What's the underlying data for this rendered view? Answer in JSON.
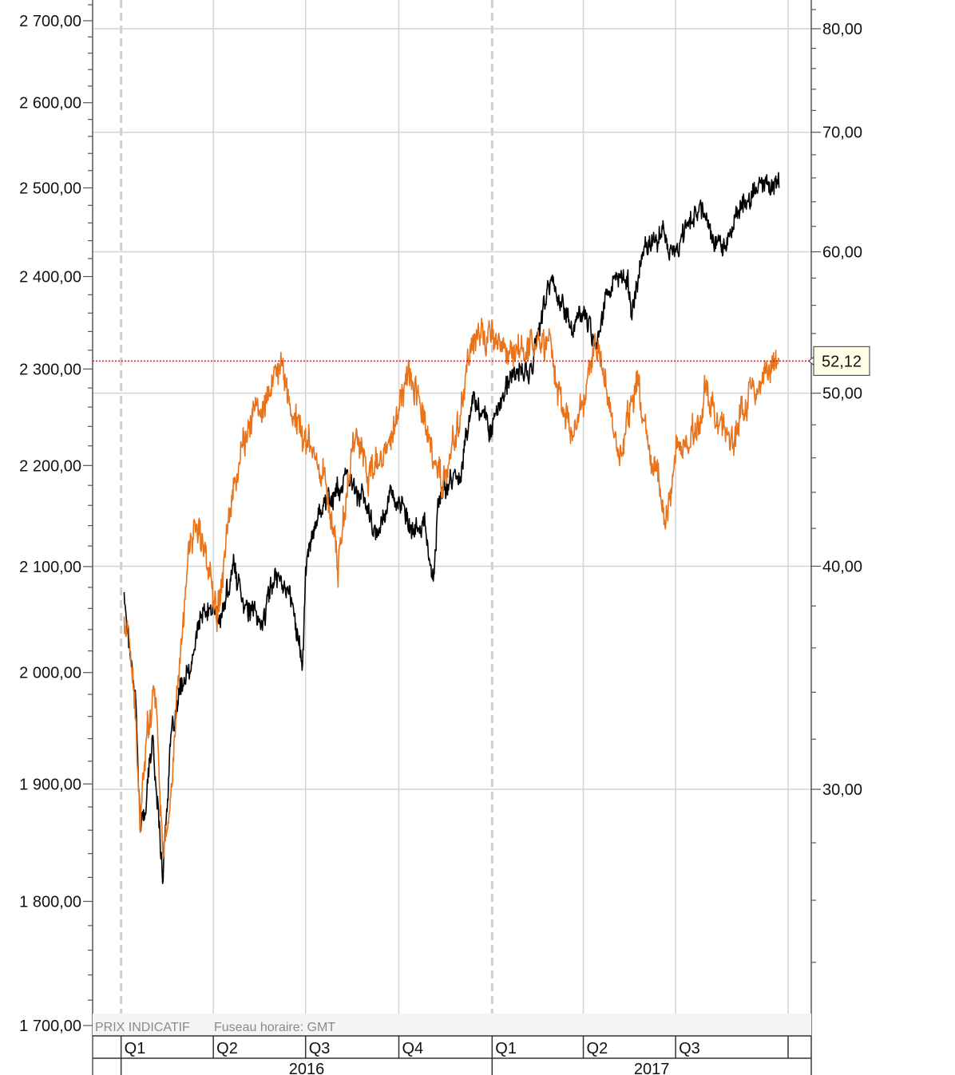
{
  "footer": {
    "price_note": "PRIX INDICATIF",
    "timezone_note": "Fuseau horaire: GMT"
  },
  "colors": {
    "index_series": "#000000",
    "oil_series": "#e8731a",
    "reference_line": "#b22222",
    "grid": "#d4d4d4",
    "callout_bg": "#ffffe8"
  },
  "chart_data": {
    "type": "line",
    "title": "",
    "grid": true,
    "left_axis": {
      "scale": "log",
      "range": [
        1700,
        2720
      ],
      "ticks": [
        {
          "value": 1700,
          "label": "1 700,00"
        },
        {
          "value": 1800,
          "label": "1 800,00"
        },
        {
          "value": 1900,
          "label": "1 900,00"
        },
        {
          "value": 2000,
          "label": "2 000,00"
        },
        {
          "value": 2100,
          "label": "2 100,00"
        },
        {
          "value": 2200,
          "label": "2 200,00"
        },
        {
          "value": 2300,
          "label": "2 300,00"
        },
        {
          "value": 2400,
          "label": "2 400,00"
        },
        {
          "value": 2500,
          "label": "2 500,00"
        },
        {
          "value": 2600,
          "label": "2 600,00"
        },
        {
          "value": 2700,
          "label": "2 700,00"
        }
      ]
    },
    "right_axis": {
      "scale": "log",
      "ticks": [
        {
          "value": 30,
          "label": "30,00"
        },
        {
          "value": 40,
          "label": "40,00"
        },
        {
          "value": 50,
          "label": "50,00"
        },
        {
          "value": 60,
          "label": "60,00"
        },
        {
          "value": 70,
          "label": "70,00"
        },
        {
          "value": 80,
          "label": "80,00"
        }
      ]
    },
    "x_axis": {
      "range": [
        "2015-12-11",
        "2017-10-20"
      ],
      "quarters": [
        {
          "label": "Q1",
          "date": "2016-01-01"
        },
        {
          "label": "Q2",
          "date": "2016-04-01"
        },
        {
          "label": "Q3",
          "date": "2016-07-01"
        },
        {
          "label": "Q4",
          "date": "2016-10-01"
        },
        {
          "label": "Q1",
          "date": "2017-01-01"
        },
        {
          "label": "Q2",
          "date": "2017-04-01"
        },
        {
          "label": "Q3",
          "date": "2017-07-01"
        }
      ],
      "years": [
        {
          "label": "2016",
          "start": "2016-01-01",
          "end": "2017-01-01"
        },
        {
          "label": "2017",
          "start": "2017-01-01",
          "end": "2017-12-31"
        }
      ]
    },
    "current_value": {
      "axis": "right",
      "value": 52.12,
      "label": "52,12"
    },
    "series": [
      {
        "axis": "left",
        "color": "#000000",
        "points": [
          [
            "2016-01-04",
            2074
          ],
          [
            "2016-01-08",
            2035
          ],
          [
            "2016-01-15",
            1985
          ],
          [
            "2016-01-20",
            1860
          ],
          [
            "2016-01-25",
            1880
          ],
          [
            "2016-02-01",
            1940
          ],
          [
            "2016-02-11",
            1825
          ],
          [
            "2016-02-19",
            1935
          ],
          [
            "2016-03-01",
            1990
          ],
          [
            "2016-03-10",
            2000
          ],
          [
            "2016-03-18",
            2050
          ],
          [
            "2016-04-01",
            2060
          ],
          [
            "2016-04-08",
            2045
          ],
          [
            "2016-04-20",
            2100
          ],
          [
            "2016-05-05",
            2060
          ],
          [
            "2016-05-19",
            2045
          ],
          [
            "2016-06-01",
            2095
          ],
          [
            "2016-06-10",
            2085
          ],
          [
            "2016-06-16",
            2070
          ],
          [
            "2016-06-24",
            2035
          ],
          [
            "2016-06-28",
            2000
          ],
          [
            "2016-07-01",
            2100
          ],
          [
            "2016-07-08",
            2130
          ],
          [
            "2016-07-15",
            2160
          ],
          [
            "2016-07-29",
            2170
          ],
          [
            "2016-08-10",
            2185
          ],
          [
            "2016-08-26",
            2170
          ],
          [
            "2016-09-09",
            2125
          ],
          [
            "2016-09-22",
            2175
          ],
          [
            "2016-10-03",
            2160
          ],
          [
            "2016-10-14",
            2130
          ],
          [
            "2016-10-25",
            2145
          ],
          [
            "2016-11-04",
            2085
          ],
          [
            "2016-11-09",
            2165
          ],
          [
            "2016-11-18",
            2180
          ],
          [
            "2016-12-01",
            2195
          ],
          [
            "2016-12-13",
            2270
          ],
          [
            "2016-12-30",
            2240
          ],
          [
            "2017-01-13",
            2275
          ],
          [
            "2017-01-26",
            2298
          ],
          [
            "2017-02-08",
            2295
          ],
          [
            "2017-02-17",
            2350
          ],
          [
            "2017-03-01",
            2395
          ],
          [
            "2017-03-10",
            2370
          ],
          [
            "2017-03-21",
            2345
          ],
          [
            "2017-04-03",
            2360
          ],
          [
            "2017-04-13",
            2330
          ],
          [
            "2017-04-26",
            2388
          ],
          [
            "2017-05-15",
            2400
          ],
          [
            "2017-05-18",
            2360
          ],
          [
            "2017-06-02",
            2440
          ],
          [
            "2017-06-19",
            2450
          ],
          [
            "2017-06-29",
            2420
          ],
          [
            "2017-07-14",
            2465
          ],
          [
            "2017-07-27",
            2478
          ],
          [
            "2017-08-10",
            2440
          ],
          [
            "2017-08-18",
            2430
          ],
          [
            "2017-08-31",
            2472
          ],
          [
            "2017-09-12",
            2490
          ],
          [
            "2017-09-28",
            2510
          ],
          [
            "2017-10-11",
            2500
          ]
        ]
      },
      {
        "axis": "right",
        "color": "#e8731a",
        "points": [
          [
            "2016-01-04",
            37.2
          ],
          [
            "2016-01-08",
            36.8
          ],
          [
            "2016-01-14",
            33.5
          ],
          [
            "2016-01-20",
            28.5
          ],
          [
            "2016-01-27",
            32.5
          ],
          [
            "2016-02-04",
            34.5
          ],
          [
            "2016-02-11",
            27.5
          ],
          [
            "2016-02-19",
            29.5
          ],
          [
            "2016-03-01",
            36.8
          ],
          [
            "2016-03-09",
            41.5
          ],
          [
            "2016-03-18",
            41.8
          ],
          [
            "2016-04-05",
            38.0
          ],
          [
            "2016-04-14",
            41.8
          ],
          [
            "2016-04-29",
            46.8
          ],
          [
            "2016-05-13",
            48.8
          ],
          [
            "2016-05-26",
            50.0
          ],
          [
            "2016-06-08",
            51.8
          ],
          [
            "2016-06-16",
            49.0
          ],
          [
            "2016-06-27",
            47.7
          ],
          [
            "2016-07-05",
            46.8
          ],
          [
            "2016-07-20",
            44.9
          ],
          [
            "2016-08-02",
            40.0
          ],
          [
            "2016-08-19",
            48.0
          ],
          [
            "2016-08-31",
            45.0
          ],
          [
            "2016-09-16",
            45.8
          ],
          [
            "2016-09-30",
            48.5
          ],
          [
            "2016-10-10",
            51.5
          ],
          [
            "2016-10-19",
            50.5
          ],
          [
            "2016-11-03",
            46.0
          ],
          [
            "2016-11-14",
            44.4
          ],
          [
            "2016-11-30",
            48.5
          ],
          [
            "2016-12-12",
            53.5
          ],
          [
            "2016-12-29",
            53.8
          ],
          [
            "2017-01-09",
            53.0
          ],
          [
            "2017-01-25",
            52.8
          ],
          [
            "2017-02-10",
            53.2
          ],
          [
            "2017-02-28",
            53.5
          ],
          [
            "2017-03-09",
            49.5
          ],
          [
            "2017-03-22",
            47.0
          ],
          [
            "2017-04-03",
            50.0
          ],
          [
            "2017-04-12",
            52.9
          ],
          [
            "2017-04-28",
            49.3
          ],
          [
            "2017-05-04",
            45.5
          ],
          [
            "2017-05-10",
            47.0
          ],
          [
            "2017-05-25",
            51.3
          ],
          [
            "2017-06-02",
            47.5
          ],
          [
            "2017-06-14",
            44.5
          ],
          [
            "2017-06-21",
            42.5
          ],
          [
            "2017-07-03",
            46.8
          ],
          [
            "2017-07-14",
            46.5
          ],
          [
            "2017-07-31",
            49.8
          ],
          [
            "2017-08-10",
            48.5
          ],
          [
            "2017-08-22",
            47.2
          ],
          [
            "2017-08-31",
            47.2
          ],
          [
            "2017-09-08",
            49.5
          ],
          [
            "2017-09-27",
            51.0
          ],
          [
            "2017-10-11",
            52.12
          ]
        ]
      }
    ]
  }
}
